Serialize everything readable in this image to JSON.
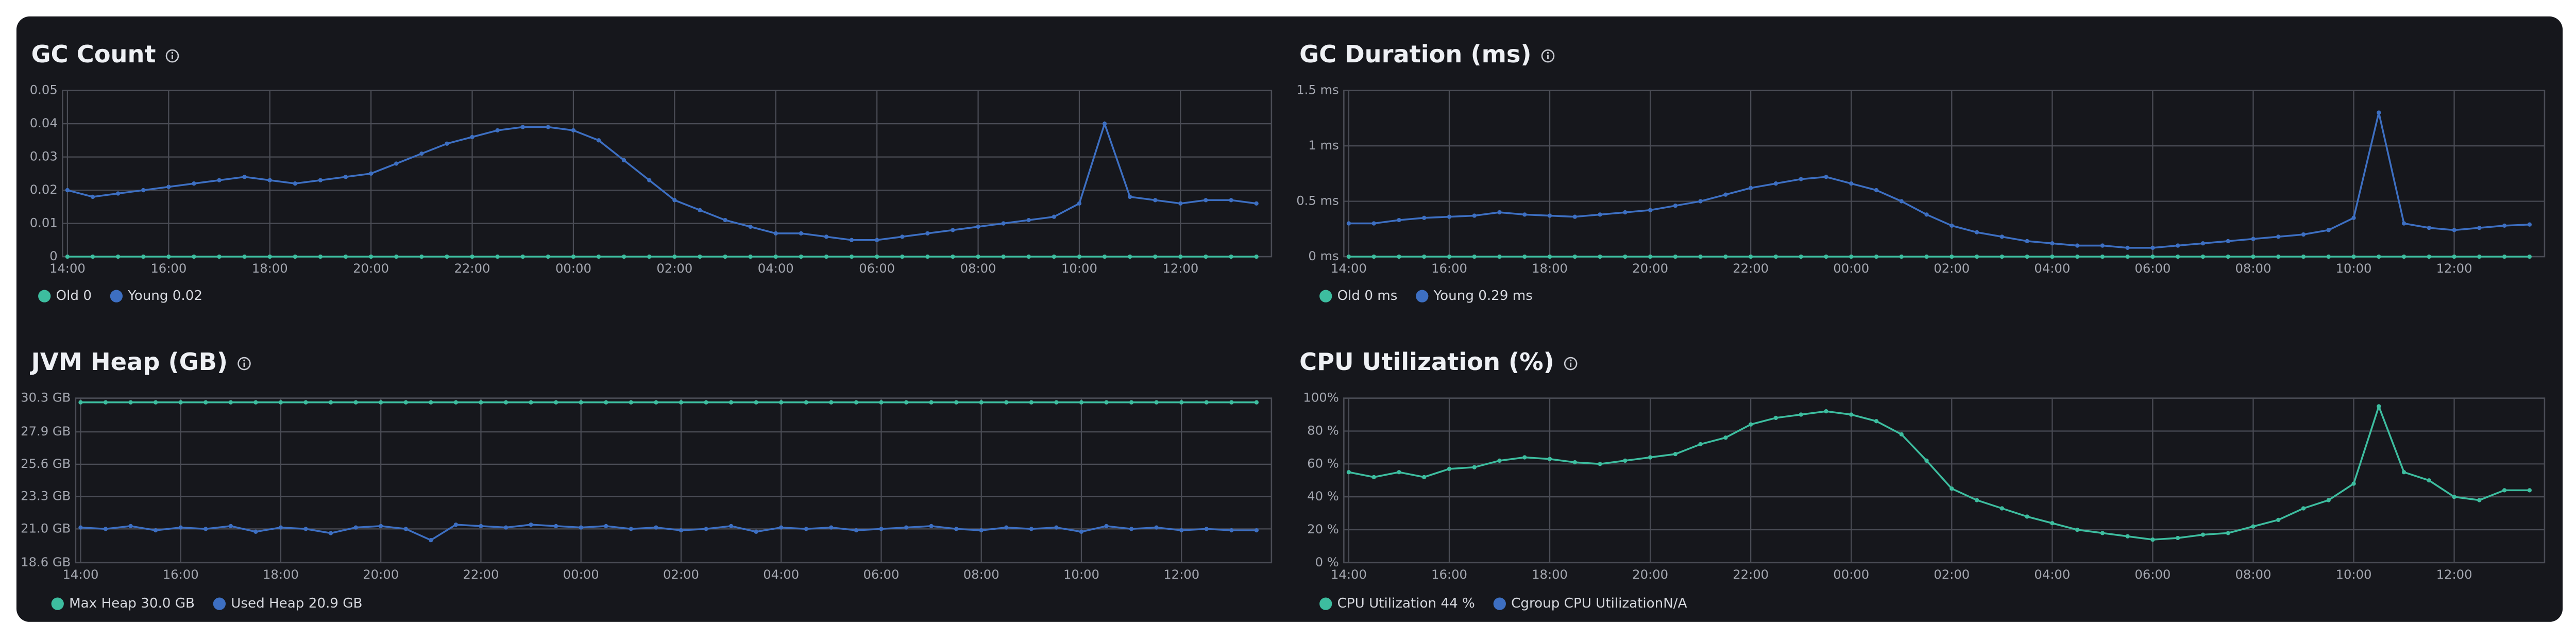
{
  "chart_data": [
    {
      "type": "line",
      "title": "GC Count",
      "categories": [
        "14:00",
        "14:30",
        "15:00",
        "15:30",
        "16:00",
        "16:30",
        "17:00",
        "17:30",
        "18:00",
        "18:30",
        "19:00",
        "19:30",
        "20:00",
        "20:30",
        "21:00",
        "21:30",
        "22:00",
        "22:30",
        "23:00",
        "23:30",
        "00:00",
        "00:30",
        "01:00",
        "01:30",
        "02:00",
        "02:30",
        "03:00",
        "03:30",
        "04:00",
        "04:30",
        "05:00",
        "05:30",
        "06:00",
        "06:30",
        "07:00",
        "07:30",
        "08:00",
        "08:30",
        "09:00",
        "09:30",
        "10:00",
        "10:30",
        "11:00",
        "11:30",
        "12:00",
        "12:30",
        "13:00",
        "13:30"
      ],
      "xticks": [
        "14:00",
        "16:00",
        "18:00",
        "20:00",
        "22:00",
        "00:00",
        "02:00",
        "04:00",
        "06:00",
        "08:00",
        "10:00",
        "12:00"
      ],
      "ylim": [
        0,
        0.05
      ],
      "yticks": [
        0,
        0.01,
        0.02,
        0.03,
        0.04,
        0.05
      ],
      "grid": true,
      "series": [
        {
          "name": "Old 0",
          "color": "#3dbd9f",
          "values": [
            0,
            0,
            0,
            0,
            0,
            0,
            0,
            0,
            0,
            0,
            0,
            0,
            0,
            0,
            0,
            0,
            0,
            0,
            0,
            0,
            0,
            0,
            0,
            0,
            0,
            0,
            0,
            0,
            0,
            0,
            0,
            0,
            0,
            0,
            0,
            0,
            0,
            0,
            0,
            0,
            0,
            0,
            0,
            0,
            0,
            0,
            0,
            0
          ]
        },
        {
          "name": "Young 0.02",
          "color": "#3d6fc2",
          "values": [
            0.02,
            0.018,
            0.019,
            0.02,
            0.021,
            0.022,
            0.023,
            0.024,
            0.023,
            0.022,
            0.023,
            0.024,
            0.025,
            0.028,
            0.031,
            0.034,
            0.036,
            0.038,
            0.039,
            0.039,
            0.038,
            0.035,
            0.029,
            0.023,
            0.017,
            0.014,
            0.011,
            0.009,
            0.007,
            0.007,
            0.006,
            0.005,
            0.005,
            0.006,
            0.007,
            0.008,
            0.009,
            0.01,
            0.011,
            0.012,
            0.016,
            0.04,
            0.018,
            0.017,
            0.016,
            0.017,
            0.017,
            0.016
          ]
        }
      ]
    },
    {
      "type": "line",
      "title": "GC Duration (ms)",
      "categories": [
        "14:00",
        "14:30",
        "15:00",
        "15:30",
        "16:00",
        "16:30",
        "17:00",
        "17:30",
        "18:00",
        "18:30",
        "19:00",
        "19:30",
        "20:00",
        "20:30",
        "21:00",
        "21:30",
        "22:00",
        "22:30",
        "23:00",
        "23:30",
        "00:00",
        "00:30",
        "01:00",
        "01:30",
        "02:00",
        "02:30",
        "03:00",
        "03:30",
        "04:00",
        "04:30",
        "05:00",
        "05:30",
        "06:00",
        "06:30",
        "07:00",
        "07:30",
        "08:00",
        "08:30",
        "09:00",
        "09:30",
        "10:00",
        "10:30",
        "11:00",
        "11:30",
        "12:00",
        "12:30",
        "13:00",
        "13:30"
      ],
      "xticks": [
        "14:00",
        "16:00",
        "18:00",
        "20:00",
        "22:00",
        "00:00",
        "02:00",
        "04:00",
        "06:00",
        "08:00",
        "10:00",
        "12:00"
      ],
      "ylim": [
        0,
        1.5
      ],
      "yticks": [
        {
          "value": 0,
          "label": "0 ms"
        },
        {
          "value": 0.5,
          "label": "0.5 ms"
        },
        {
          "value": 1,
          "label": "1 ms"
        },
        {
          "value": 1.5,
          "label": "1.5 ms"
        }
      ],
      "grid": true,
      "series": [
        {
          "name": "Old 0 ms",
          "color": "#3dbd9f",
          "values": [
            0,
            0,
            0,
            0,
            0,
            0,
            0,
            0,
            0,
            0,
            0,
            0,
            0,
            0,
            0,
            0,
            0,
            0,
            0,
            0,
            0,
            0,
            0,
            0,
            0,
            0,
            0,
            0,
            0,
            0,
            0,
            0,
            0,
            0,
            0,
            0,
            0,
            0,
            0,
            0,
            0,
            0,
            0,
            0,
            0,
            0,
            0,
            0
          ]
        },
        {
          "name": "Young 0.29 ms",
          "color": "#3d6fc2",
          "values": [
            0.3,
            0.3,
            0.33,
            0.35,
            0.36,
            0.37,
            0.4,
            0.38,
            0.37,
            0.36,
            0.38,
            0.4,
            0.42,
            0.46,
            0.5,
            0.56,
            0.62,
            0.66,
            0.7,
            0.72,
            0.66,
            0.6,
            0.5,
            0.38,
            0.28,
            0.22,
            0.18,
            0.14,
            0.12,
            0.1,
            0.1,
            0.08,
            0.08,
            0.1,
            0.12,
            0.14,
            0.16,
            0.18,
            0.2,
            0.24,
            0.35,
            1.3,
            0.3,
            0.26,
            0.24,
            0.26,
            0.28,
            0.29
          ]
        }
      ]
    },
    {
      "type": "line",
      "title": "JVM Heap (GB)",
      "categories": [
        "14:00",
        "14:30",
        "15:00",
        "15:30",
        "16:00",
        "16:30",
        "17:00",
        "17:30",
        "18:00",
        "18:30",
        "19:00",
        "19:30",
        "20:00",
        "20:30",
        "21:00",
        "21:30",
        "22:00",
        "22:30",
        "23:00",
        "23:30",
        "00:00",
        "00:30",
        "01:00",
        "01:30",
        "02:00",
        "02:30",
        "03:00",
        "03:30",
        "04:00",
        "04:30",
        "05:00",
        "05:30",
        "06:00",
        "06:30",
        "07:00",
        "07:30",
        "08:00",
        "08:30",
        "09:00",
        "09:30",
        "10:00",
        "10:30",
        "11:00",
        "11:30",
        "12:00",
        "12:30",
        "13:00",
        "13:30"
      ],
      "xticks": [
        "14:00",
        "16:00",
        "18:00",
        "20:00",
        "22:00",
        "00:00",
        "02:00",
        "04:00",
        "06:00",
        "08:00",
        "10:00",
        "12:00"
      ],
      "ylim": [
        18.6,
        30.3
      ],
      "yticks": [
        {
          "value": 18.6,
          "label": "18.6 GB"
        },
        {
          "value": 21.0,
          "label": "21.0 GB"
        },
        {
          "value": 23.3,
          "label": "23.3 GB"
        },
        {
          "value": 25.6,
          "label": "25.6 GB"
        },
        {
          "value": 27.9,
          "label": "27.9 GB"
        },
        {
          "value": 30.3,
          "label": "30.3 GB"
        }
      ],
      "grid": true,
      "series": [
        {
          "name": "Max Heap 30.0 GB",
          "color": "#3dbd9f",
          "values": [
            30,
            30,
            30,
            30,
            30,
            30,
            30,
            30,
            30,
            30,
            30,
            30,
            30,
            30,
            30,
            30,
            30,
            30,
            30,
            30,
            30,
            30,
            30,
            30,
            30,
            30,
            30,
            30,
            30,
            30,
            30,
            30,
            30,
            30,
            30,
            30,
            30,
            30,
            30,
            30,
            30,
            30,
            30,
            30,
            30,
            30,
            30,
            30
          ]
        },
        {
          "name": "Used Heap 20.9 GB",
          "color": "#3d6fc2",
          "values": [
            21.1,
            21.0,
            21.2,
            20.9,
            21.1,
            21.0,
            21.2,
            20.8,
            21.1,
            21.0,
            20.7,
            21.1,
            21.2,
            21.0,
            20.2,
            21.3,
            21.2,
            21.1,
            21.3,
            21.2,
            21.1,
            21.2,
            21.0,
            21.1,
            20.9,
            21.0,
            21.2,
            20.8,
            21.1,
            21.0,
            21.1,
            20.9,
            21.0,
            21.1,
            21.2,
            21.0,
            20.9,
            21.1,
            21.0,
            21.1,
            20.8,
            21.2,
            21.0,
            21.1,
            20.9,
            21.0,
            20.9,
            20.9
          ]
        }
      ]
    },
    {
      "type": "line",
      "title": "CPU Utilization (%)",
      "categories": [
        "14:00",
        "14:30",
        "15:00",
        "15:30",
        "16:00",
        "16:30",
        "17:00",
        "17:30",
        "18:00",
        "18:30",
        "19:00",
        "19:30",
        "20:00",
        "20:30",
        "21:00",
        "21:30",
        "22:00",
        "22:30",
        "23:00",
        "23:30",
        "00:00",
        "00:30",
        "01:00",
        "01:30",
        "02:00",
        "02:30",
        "03:00",
        "03:30",
        "04:00",
        "04:30",
        "05:00",
        "05:30",
        "06:00",
        "06:30",
        "07:00",
        "07:30",
        "08:00",
        "08:30",
        "09:00",
        "09:30",
        "10:00",
        "10:30",
        "11:00",
        "11:30",
        "12:00",
        "12:30",
        "13:00",
        "13:30"
      ],
      "xticks": [
        "14:00",
        "16:00",
        "18:00",
        "20:00",
        "22:00",
        "00:00",
        "02:00",
        "04:00",
        "06:00",
        "08:00",
        "10:00",
        "12:00"
      ],
      "ylim": [
        0,
        100
      ],
      "yticks": [
        {
          "value": 0,
          "label": "0 %"
        },
        {
          "value": 20,
          "label": "20 %"
        },
        {
          "value": 40,
          "label": "40 %"
        },
        {
          "value": 60,
          "label": "60 %"
        },
        {
          "value": 80,
          "label": "80 %"
        },
        {
          "value": 100,
          "label": "100%"
        }
      ],
      "grid": true,
      "series": [
        {
          "name": "CPU Utilization 44 %",
          "color": "#3dbd9f",
          "values": [
            55,
            52,
            55,
            52,
            57,
            58,
            62,
            64,
            63,
            61,
            60,
            62,
            64,
            66,
            72,
            76,
            84,
            88,
            90,
            92,
            90,
            86,
            78,
            62,
            45,
            38,
            33,
            28,
            24,
            20,
            18,
            16,
            14,
            15,
            17,
            18,
            22,
            26,
            33,
            38,
            48,
            95,
            55,
            50,
            40,
            38,
            44,
            44
          ]
        },
        {
          "name": "Cgroup CPU UtilizationN/A",
          "color": "#3d6fc2"
        }
      ]
    }
  ]
}
